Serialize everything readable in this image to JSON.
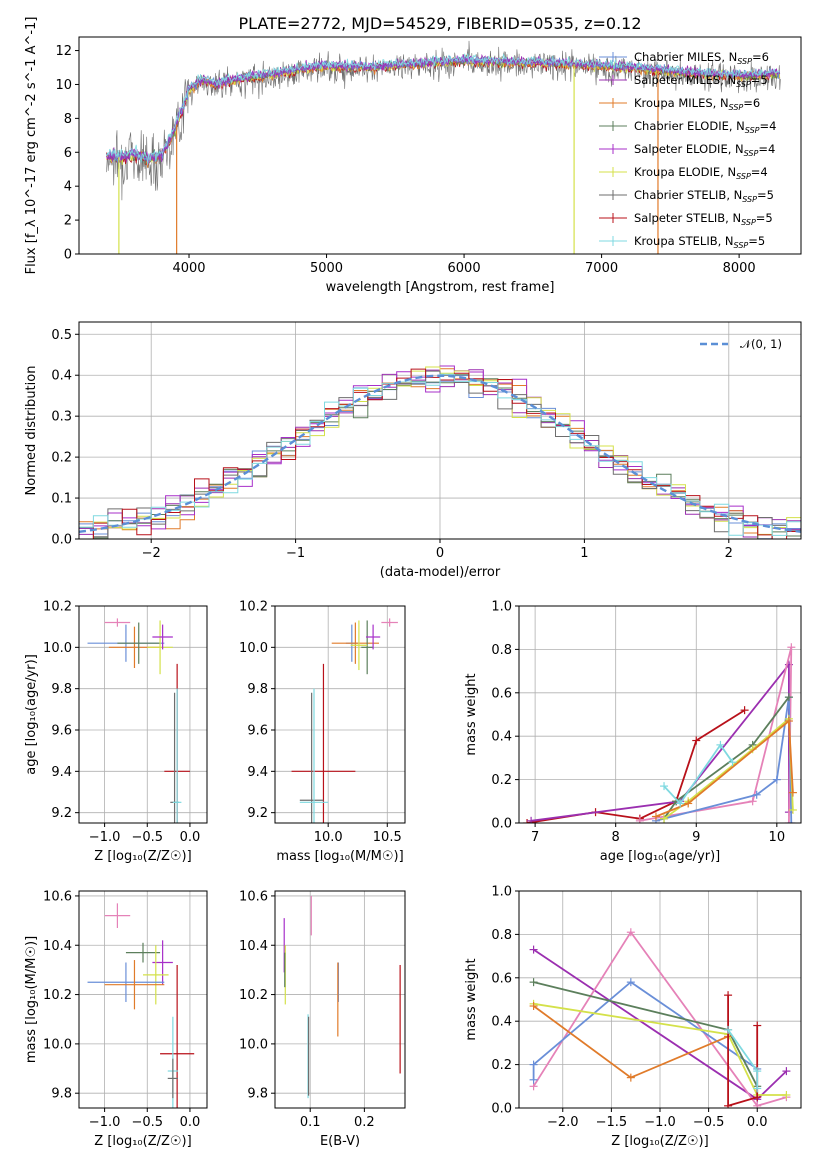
{
  "figure_title": "PLATE=2772, MJD=54529, FIBERID=0535, z=0.12",
  "colors": {
    "Chabrier MILES": "#6a8fd8",
    "Salpeter MILES": "#9b2fb0",
    "Kroupa MILES": "#e07b2a",
    "Chabrier ELODIE": "#5c7f5c",
    "Salpeter ELODIE": "#a72fc9",
    "Kroupa ELODIE": "#d4e14a",
    "Chabrier STELIB": "#6e6e6e",
    "Salpeter STELIB": "#b8111a",
    "Kroupa STELIB": "#7fd9e0",
    "normal": "#5b8fd6",
    "pink": "#e582b8",
    "olive": "#8c9b3a"
  },
  "chart_data": [
    {
      "id": "spectrum",
      "type": "line",
      "xlabel": "wavelength [Angstrom, rest frame]",
      "ylabel": "Flux [f_λ 10^-17 erg cm^-2 s^-1 A^-1]",
      "xlim": [
        3200,
        8450
      ],
      "ylim": [
        0,
        12.8
      ],
      "xticks": [
        4000,
        5000,
        6000,
        7000,
        8000
      ],
      "yticks": [
        0,
        2,
        4,
        6,
        8,
        10,
        12
      ],
      "grid": false,
      "legend_position": "top-right",
      "legend": [
        {
          "label": "Chabrier MILES, N",
          "sub": "SSP",
          "tail": "=6"
        },
        {
          "label": "Salpeter MILES, N",
          "sub": "SSP",
          "tail": "=5"
        },
        {
          "label": "Kroupa MILES, N",
          "sub": "SSP",
          "tail": "=6"
        },
        {
          "label": "Chabrier ELODIE, N",
          "sub": "SSP",
          "tail": "=4"
        },
        {
          "label": "Salpeter ELODIE, N",
          "sub": "SSP",
          "tail": "=4"
        },
        {
          "label": "Kroupa ELODIE, N",
          "sub": "SSP",
          "tail": "=4"
        },
        {
          "label": "Chabrier STELIB, N",
          "sub": "SSP",
          "tail": "=5"
        },
        {
          "label": "Salpeter STELIB, N",
          "sub": "SSP",
          "tail": "=5"
        },
        {
          "label": "Kroupa STELIB, N",
          "sub": "SSP",
          "tail": "=5"
        }
      ],
      "continuum": {
        "wavelength": [
          3400,
          3500,
          3600,
          3700,
          3800,
          3900,
          4000,
          4100,
          4200,
          4400,
          4600,
          4800,
          5000,
          5300,
          5600,
          6000,
          6400,
          6800,
          7200,
          7600,
          8000,
          8300
        ],
        "flux": [
          5.8,
          5.7,
          5.9,
          5.6,
          5.8,
          7.4,
          9.7,
          10.3,
          10.0,
          10.4,
          10.6,
          10.9,
          11.1,
          11.0,
          11.2,
          11.4,
          11.3,
          11.2,
          11.0,
          10.7,
          10.5,
          10.6
        ]
      },
      "spikes": [
        {
          "x": 3490,
          "to": 0
        },
        {
          "x": 3910,
          "to": 0
        },
        {
          "x": 6800,
          "to": 0
        },
        {
          "x": 7410,
          "to": 0
        }
      ]
    },
    {
      "id": "residuals",
      "type": "step",
      "xlabel": "(data-model)/error",
      "ylabel": "Normed distribution",
      "xlim": [
        -2.5,
        2.5
      ],
      "ylim": [
        0,
        0.53
      ],
      "xticks": [
        -2,
        -1,
        0,
        1,
        2
      ],
      "yticks": [
        0.0,
        0.1,
        0.2,
        0.3,
        0.4,
        0.5
      ],
      "grid": true,
      "legend": "𝒩(0, 1)",
      "legend_position": "top-right",
      "bin_width": 0.1
    },
    {
      "id": "age-vs-Z",
      "type": "errorbar",
      "xlabel": "Z [log₁₀(Z/Z☉)]",
      "ylabel": "age  [log₁₀(age/yr)]",
      "xlim": [
        -1.3,
        0.2
      ],
      "ylim": [
        9.15,
        10.2
      ],
      "xticks": [
        -1.0,
        -0.5,
        0.0
      ],
      "yticks": [
        9.2,
        9.4,
        9.6,
        9.8,
        10.0,
        10.2
      ],
      "points": [
        {
          "c": "pink",
          "x": -0.85,
          "y": 10.12,
          "xe": 0.15,
          "ye": 0.02
        },
        {
          "c": "Chabrier MILES",
          "x": -0.75,
          "y": 10.02,
          "xe": 0.45,
          "ye": 0.09
        },
        {
          "c": "Kroupa MILES",
          "x": -0.65,
          "y": 10.0,
          "xe": 0.3,
          "ye": 0.1
        },
        {
          "c": "Chabrier ELODIE",
          "x": -0.6,
          "y": 10.02,
          "xe": 0.25,
          "ye": 0.1
        },
        {
          "c": "Kroupa ELODIE",
          "x": -0.35,
          "y": 10.0,
          "xe": 0.15,
          "ye": 0.13
        },
        {
          "c": "Salpeter ELODIE",
          "x": -0.32,
          "y": 10.05,
          "xe": 0.12,
          "ye": 0.06
        },
        {
          "c": "Salpeter STELIB",
          "x": -0.15,
          "y": 9.4,
          "xe": 0.15,
          "ye": 0.52
        },
        {
          "c": "Chabrier STELIB",
          "x": -0.18,
          "y": 9.25,
          "xe": 0.05,
          "ye": 0.53
        },
        {
          "c": "Kroupa STELIB",
          "x": -0.15,
          "y": 9.25,
          "xe": 0.05,
          "ye": 0.55
        }
      ]
    },
    {
      "id": "age-vs-mass",
      "type": "errorbar",
      "xlabel": "mass [log₁₀(M/M☉)]",
      "ylabel": "",
      "xlim": [
        9.55,
        10.65
      ],
      "ylim": [
        9.15,
        10.2
      ],
      "xticks": [
        10.0,
        10.5
      ],
      "yticks": [
        9.2,
        9.4,
        9.6,
        9.8,
        10.0,
        10.2
      ],
      "points": [
        {
          "c": "pink",
          "x": 10.52,
          "y": 10.12,
          "xe": 0.07,
          "ye": 0.02
        },
        {
          "c": "Chabrier MILES",
          "x": 10.2,
          "y": 10.02,
          "xe": 0.05,
          "ye": 0.09
        },
        {
          "c": "Kroupa MILES",
          "x": 10.23,
          "y": 10.02,
          "xe": 0.2,
          "ye": 0.1
        },
        {
          "c": "Chabrier ELODIE",
          "x": 10.33,
          "y": 10.0,
          "xe": 0.05,
          "ye": 0.13
        },
        {
          "c": "Kroupa ELODIE",
          "x": 10.26,
          "y": 10.01,
          "xe": 0.07,
          "ye": 0.12
        },
        {
          "c": "Salpeter ELODIE",
          "x": 10.38,
          "y": 10.05,
          "xe": 0.06,
          "ye": 0.06
        },
        {
          "c": "Salpeter STELIB",
          "x": 9.96,
          "y": 9.4,
          "xe": 0.27,
          "ye": 0.52
        },
        {
          "c": "Chabrier STELIB",
          "x": 9.86,
          "y": 9.26,
          "xe": 0.1,
          "ye": 0.52
        },
        {
          "c": "Kroupa STELIB",
          "x": 9.88,
          "y": 9.25,
          "xe": 0.12,
          "ye": 0.55
        }
      ]
    },
    {
      "id": "weight-vs-age",
      "type": "line",
      "xlabel": "age  [log₁₀(age/yr)]",
      "ylabel": "mass weight",
      "xlim": [
        6.8,
        10.3
      ],
      "ylim": [
        0.0,
        1.0
      ],
      "xticks": [
        7,
        8,
        9,
        10
      ],
      "yticks": [
        0.0,
        0.2,
        0.4,
        0.6,
        0.8,
        1.0
      ],
      "grid": true,
      "series": [
        {
          "c": "Salpeter STELIB",
          "x": [
            6.9,
            7.75,
            8.3,
            8.75,
            9.0,
            9.6
          ],
          "y": [
            0.0,
            0.05,
            0.02,
            0.1,
            0.38,
            0.52
          ]
        },
        {
          "c": "Salpeter MILES",
          "x": [
            6.95,
            8.8,
            10.15,
            10.15
          ],
          "y": [
            0.01,
            0.1,
            0.73,
            0.05
          ]
        },
        {
          "c": "pink",
          "x": [
            8.3,
            9.7,
            10.18,
            10.15
          ],
          "y": [
            0.01,
            0.1,
            0.81,
            0.0
          ]
        },
        {
          "c": "Chabrier MILES",
          "x": [
            8.5,
            9.75,
            10.0,
            10.15,
            10.18
          ],
          "y": [
            0.01,
            0.13,
            0.2,
            0.58,
            0.0
          ]
        },
        {
          "c": "Chabrier ELODIE",
          "x": [
            8.6,
            8.75,
            9.7,
            10.15
          ],
          "y": [
            0.02,
            0.1,
            0.36,
            0.58
          ]
        },
        {
          "c": "Kroupa ELODIE",
          "x": [
            8.6,
            8.9,
            9.7,
            10.15,
            10.2
          ],
          "y": [
            0.02,
            0.1,
            0.34,
            0.48,
            0.06
          ]
        },
        {
          "c": "Kroupa MILES",
          "x": [
            8.5,
            8.9,
            10.15,
            10.2
          ],
          "y": [
            0.03,
            0.09,
            0.47,
            0.14
          ]
        },
        {
          "c": "Kroupa STELIB",
          "x": [
            8.6,
            8.8,
            9.3,
            9.45
          ],
          "y": [
            0.17,
            0.09,
            0.36,
            0.28
          ]
        }
      ]
    },
    {
      "id": "mass-vs-Z",
      "type": "errorbar",
      "xlabel": "Z [log₁₀(Z/Z☉)]",
      "ylabel": "mass [log₁₀(M/M☉)]",
      "xlim": [
        -1.3,
        0.2
      ],
      "ylim": [
        9.74,
        10.62
      ],
      "xticks": [
        -1.0,
        -0.5,
        0.0
      ],
      "yticks": [
        9.8,
        10.0,
        10.2,
        10.4,
        10.6
      ],
      "points": [
        {
          "c": "pink",
          "x": -0.85,
          "y": 10.52,
          "xe": 0.15,
          "ye": 0.05
        },
        {
          "c": "Salpeter ELODIE",
          "x": -0.32,
          "y": 10.33,
          "xe": 0.12,
          "ye": 0.09
        },
        {
          "c": "Chabrier ELODIE",
          "x": -0.55,
          "y": 10.37,
          "xe": 0.2,
          "ye": 0.04
        },
        {
          "c": "Kroupa ELODIE",
          "x": -0.4,
          "y": 10.28,
          "xe": 0.15,
          "ye": 0.12
        },
        {
          "c": "Chabrier MILES",
          "x": -0.75,
          "y": 10.25,
          "xe": 0.45,
          "ye": 0.08
        },
        {
          "c": "Kroupa MILES",
          "x": -0.65,
          "y": 10.24,
          "xe": 0.35,
          "ye": 0.1
        },
        {
          "c": "Salpeter STELIB",
          "x": -0.15,
          "y": 9.96,
          "xe": 0.2,
          "ye": 0.36
        },
        {
          "c": "Kroupa STELIB",
          "x": -0.2,
          "y": 9.89,
          "xe": 0.06,
          "ye": 0.22
        },
        {
          "c": "Chabrier STELIB",
          "x": -0.2,
          "y": 9.86,
          "xe": 0.06,
          "ye": 0.08
        }
      ]
    },
    {
      "id": "mass-vs-EBV",
      "type": "errorbar",
      "xlabel": "E(B-V)",
      "ylabel": "",
      "xlim": [
        0.035,
        0.275
      ],
      "ylim": [
        9.74,
        10.62
      ],
      "xticks": [
        0.1,
        0.2
      ],
      "yticks": [
        9.8,
        10.0,
        10.2,
        10.4,
        10.6
      ],
      "points": [
        {
          "c": "pink",
          "x": 0.102,
          "y": 10.52,
          "xe": 0,
          "ye": 0.08
        },
        {
          "c": "Salpeter ELODIE",
          "x": 0.052,
          "y": 10.4,
          "xe": 0,
          "ye": 0.11
        },
        {
          "c": "Kroupa ELODIE",
          "x": 0.054,
          "y": 10.28,
          "xe": 0,
          "ye": 0.12
        },
        {
          "c": "Chabrier ELODIE",
          "x": 0.053,
          "y": 10.3,
          "xe": 0,
          "ye": 0.07
        },
        {
          "c": "Chabrier MILES",
          "x": 0.152,
          "y": 10.25,
          "xe": 0,
          "ye": 0.08
        },
        {
          "c": "Kroupa MILES",
          "x": 0.151,
          "y": 10.18,
          "xe": 0,
          "ye": 0.15
        },
        {
          "c": "Salpeter STELIB",
          "x": 0.266,
          "y": 10.1,
          "xe": 0,
          "ye": 0.22
        },
        {
          "c": "Kroupa STELIB",
          "x": 0.096,
          "y": 9.95,
          "xe": 0,
          "ye": 0.17
        },
        {
          "c": "Chabrier STELIB",
          "x": 0.097,
          "y": 9.95,
          "xe": 0,
          "ye": 0.16
        }
      ]
    },
    {
      "id": "weight-vs-Z",
      "type": "line",
      "xlabel": "Z [log₁₀(Z/Z☉)]",
      "ylabel": "mass weight",
      "xlim": [
        -2.45,
        0.45
      ],
      "ylim": [
        0.0,
        1.0
      ],
      "xticks": [
        -2.0,
        -1.5,
        -1.0,
        -0.5,
        0.0
      ],
      "yticks": [
        0.0,
        0.2,
        0.4,
        0.6,
        0.8,
        1.0
      ],
      "grid": true,
      "series": [
        {
          "c": "Salpeter MILES",
          "x": [
            -2.3,
            0.0,
            0.3
          ],
          "y": [
            0.73,
            0.04,
            0.17
          ]
        },
        {
          "c": "pink",
          "x": [
            -2.3,
            -1.3,
            0.0,
            0.3
          ],
          "y": [
            0.1,
            0.81,
            0.01,
            0.05
          ]
        },
        {
          "c": "Chabrier MILES",
          "x": [
            -2.3,
            -2.3,
            -1.3,
            0.0
          ],
          "y": [
            0.13,
            0.2,
            0.58,
            0.18
          ]
        },
        {
          "c": "Chabrier ELODIE",
          "x": [
            -2.3,
            -0.3,
            0.0
          ],
          "y": [
            0.58,
            0.36,
            0.1
          ]
        },
        {
          "c": "Kroupa ELODIE",
          "x": [
            -2.3,
            -0.3,
            0.0,
            0.3
          ],
          "y": [
            0.48,
            0.34,
            0.06,
            0.06
          ]
        },
        {
          "c": "Kroupa MILES",
          "x": [
            -2.3,
            -1.3,
            -0.3
          ],
          "y": [
            0.47,
            0.14,
            0.33
          ]
        },
        {
          "c": "Salpeter STELIB",
          "x": [
            -0.3,
            -0.3,
            0.0,
            0.0
          ],
          "y": [
            0.52,
            0.01,
            0.05,
            0.38
          ]
        },
        {
          "c": "Kroupa STELIB",
          "x": [
            -0.3,
            0.0,
            0.0
          ],
          "y": [
            0.36,
            0.17,
            0.09
          ]
        }
      ]
    }
  ]
}
